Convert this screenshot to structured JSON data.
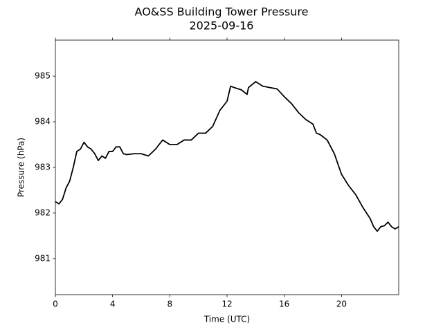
{
  "chart_data": {
    "type": "line",
    "title": "AO&SS Building Tower Pressure",
    "subtitle": "2025-09-16",
    "x_label": "Time (UTC)",
    "y_label": "Pressure (hPa)",
    "color": "#000000",
    "x": [
      0,
      0.25,
      0.5,
      0.75,
      1,
      1.25,
      1.5,
      1.75,
      2,
      2.25,
      2.5,
      2.75,
      3,
      3.25,
      3.5,
      3.75,
      4,
      4.25,
      4.5,
      4.75,
      5,
      5.5,
      6,
      6.5,
      7,
      7.5,
      8,
      8.5,
      9,
      9.5,
      10,
      10.5,
      11,
      11.5,
      12,
      12.25,
      12.5,
      13,
      13.4,
      13.5,
      14,
      14.5,
      15,
      15.5,
      16,
      16.5,
      17,
      17.5,
      18,
      18.25,
      18.5,
      19,
      19.5,
      20,
      20.5,
      21,
      21.5,
      22,
      22.25,
      22.5,
      22.75,
      23,
      23.25,
      23.5,
      23.75,
      24
    ],
    "values": [
      982.25,
      982.2,
      982.3,
      982.55,
      982.7,
      983.0,
      983.35,
      983.4,
      983.55,
      983.45,
      983.4,
      983.3,
      983.15,
      983.25,
      983.2,
      983.35,
      983.35,
      983.45,
      983.45,
      983.3,
      983.28,
      983.3,
      983.3,
      983.25,
      983.4,
      983.6,
      983.5,
      983.5,
      983.6,
      983.6,
      983.75,
      983.75,
      983.9,
      984.25,
      984.45,
      984.78,
      984.75,
      984.7,
      984.6,
      984.75,
      984.88,
      984.78,
      984.75,
      984.72,
      984.55,
      984.4,
      984.2,
      984.05,
      983.95,
      983.75,
      983.72,
      983.6,
      983.3,
      982.85,
      982.6,
      982.4,
      982.12,
      981.88,
      981.7,
      981.6,
      981.7,
      981.72,
      981.8,
      981.7,
      981.65,
      981.7
    ],
    "xlim": [
      0,
      24
    ],
    "ylim": [
      980.21,
      985.79
    ],
    "xticks": [
      0,
      4,
      8,
      12,
      16,
      20
    ],
    "yticks": [
      981,
      982,
      983,
      984,
      985
    ]
  }
}
